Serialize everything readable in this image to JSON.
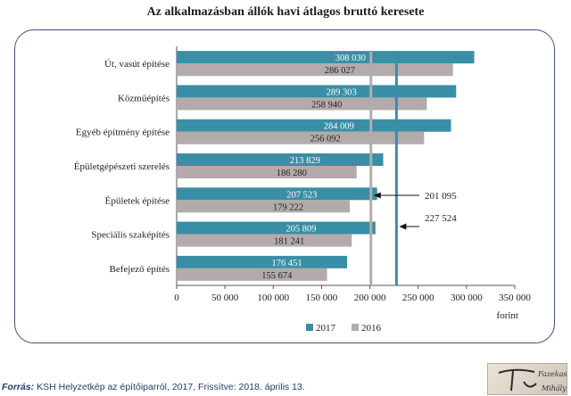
{
  "chart_data": {
    "type": "bar",
    "orientation": "horizontal",
    "title": "Az alkalmazásban állók havi átlagos bruttó keresete",
    "categories": [
      "Út, vasút építése",
      "Közműépítés",
      "Egyéb építmény építése",
      "Épületgépészeti szerelés",
      "Épületek építése",
      "Speciális szaképítés",
      "Befejező építés"
    ],
    "series": [
      {
        "name": "2017",
        "color": "#3a8ea5",
        "values": [
          308030,
          289303,
          284009,
          213829,
          207523,
          205809,
          176451
        ],
        "value_labels": [
          "308 030",
          "289 303",
          "284 009",
          "213 829",
          "207 523",
          "205 809",
          "176 451"
        ]
      },
      {
        "name": "2016",
        "color": "#b3abab",
        "values": [
          286027,
          258940,
          256092,
          186280,
          179222,
          181241,
          155674
        ],
        "value_labels": [
          "286 027",
          "258 940",
          "256 092",
          "186 280",
          "179 222",
          "181 241",
          "155 674"
        ]
      }
    ],
    "xlim": [
      0,
      350000
    ],
    "x_ticks": [
      0,
      50000,
      100000,
      150000,
      200000,
      250000,
      300000,
      350000
    ],
    "x_tick_labels": [
      "0",
      "50 000",
      "100 000",
      "150 000",
      "200 000",
      "250 000",
      "300 000",
      "350 000"
    ],
    "x_unit": "forint",
    "reference_lines": [
      {
        "value": 201095,
        "label": "201 095",
        "color": "#b3abab"
      },
      {
        "value": 227524,
        "label": "227 524",
        "color": "#3a8ea5"
      }
    ],
    "legend_position": "bottom",
    "grid": false
  },
  "source": {
    "prefix": "Forrás:",
    "text": " KSH Helyzetkép az építőiparról, 2017, Frissítve: 2018. április 13."
  },
  "logo": {
    "text_top": "Fazekas",
    "text_bottom": "Mihály"
  }
}
